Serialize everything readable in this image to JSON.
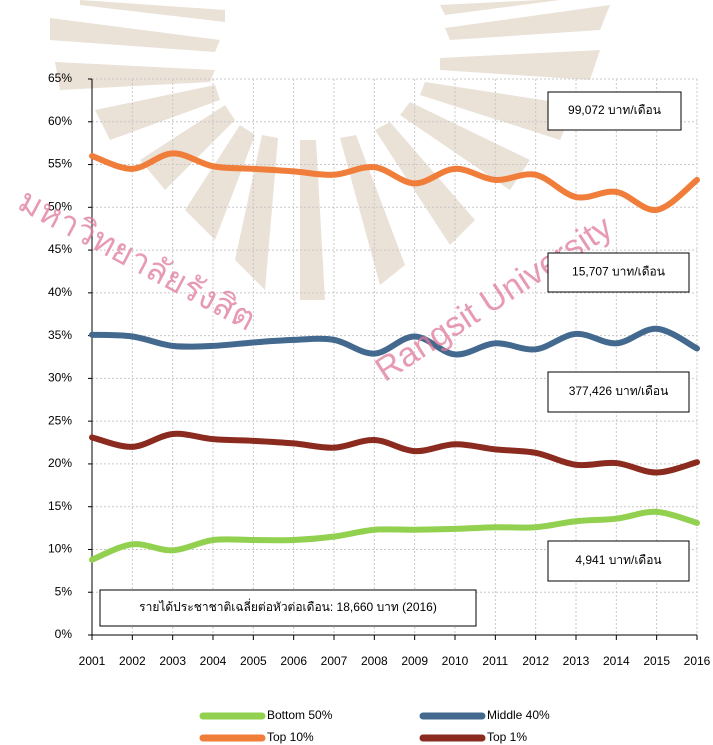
{
  "chart_data": {
    "type": "line",
    "x": [
      2001,
      2002,
      2003,
      2004,
      2005,
      2006,
      2007,
      2008,
      2009,
      2010,
      2011,
      2012,
      2013,
      2014,
      2015,
      2016
    ],
    "xlim": [
      2001,
      2016
    ],
    "xticks": [
      2001,
      2002,
      2003,
      2004,
      2005,
      2006,
      2007,
      2008,
      2009,
      2010,
      2011,
      2012,
      2013,
      2014,
      2015,
      2016
    ],
    "ylim": [
      0,
      65
    ],
    "yticks": [
      {
        "value": 0,
        "label": "0%"
      },
      {
        "value": 5,
        "label": "5%"
      },
      {
        "value": 10,
        "label": "10%"
      },
      {
        "value": 15,
        "label": "15%"
      },
      {
        "value": 20,
        "label": "20%"
      },
      {
        "value": 25,
        "label": "25%"
      },
      {
        "value": 30,
        "label": "30%"
      },
      {
        "value": 35,
        "label": "35%"
      },
      {
        "value": 40,
        "label": "40%"
      },
      {
        "value": 45,
        "label": "45%"
      },
      {
        "value": 50,
        "label": "50%"
      },
      {
        "value": 55,
        "label": "55%"
      },
      {
        "value": 60,
        "label": "60%"
      },
      {
        "value": 65,
        "label": "65%"
      }
    ],
    "grid": true,
    "series": [
      {
        "name": "Bottom 50%",
        "color": "#92d050",
        "values": [
          8.8,
          10.6,
          9.9,
          11.1,
          11.1,
          11.1,
          11.5,
          12.3,
          12.3,
          12.4,
          12.6,
          12.6,
          13.3,
          13.6,
          14.4,
          13.1
        ]
      },
      {
        "name": "Middle 40%",
        "color": "#44698f",
        "values": [
          35.1,
          34.9,
          33.8,
          33.8,
          34.2,
          34.5,
          34.5,
          32.9,
          34.9,
          32.8,
          34.1,
          33.4,
          35.2,
          34.1,
          35.8,
          33.5
        ]
      },
      {
        "name": "Top 10%",
        "color": "#f07d3a",
        "values": [
          56.0,
          54.5,
          56.3,
          54.8,
          54.5,
          54.2,
          53.8,
          54.7,
          52.8,
          54.5,
          53.2,
          53.8,
          51.2,
          51.8,
          49.7,
          53.2
        ]
      },
      {
        "name": "Top 1%",
        "color": "#8b2a1e",
        "values": [
          23.1,
          22.0,
          23.5,
          22.9,
          22.7,
          22.4,
          21.9,
          22.8,
          21.5,
          22.3,
          21.7,
          21.3,
          19.9,
          20.1,
          19.0,
          20.2
        ]
      }
    ],
    "annotations": [
      "99,072 บาท/เดือน",
      "15,707 บาท/เดือน",
      "377,426 บาท/เดือน",
      "4,941 บาท/เดือน",
      "รายได้ประชาชาติเฉลี่ยต่อหัวต่อเดือน: 18,660 บาท (2016)"
    ],
    "watermark": [
      "มหาวิทยาลัยรังสิต",
      "Rangsit University"
    ]
  }
}
